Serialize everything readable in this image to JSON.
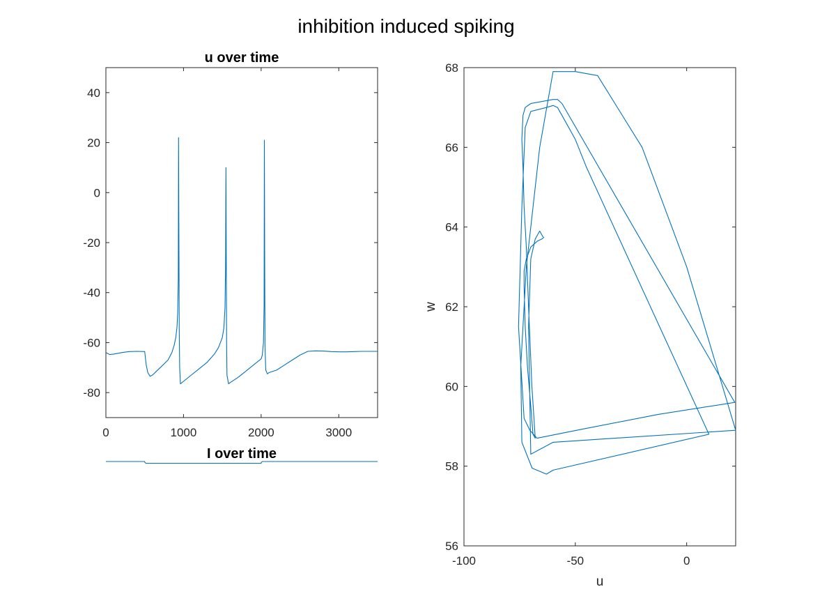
{
  "figure": {
    "title": "inhibition induced spiking"
  },
  "chart_data": [
    {
      "type": "line",
      "title": "u over time",
      "xlabel": "",
      "ylabel": "",
      "xlim": [
        0,
        3500
      ],
      "ylim": [
        -90,
        50
      ],
      "xticks": [
        0,
        1000,
        2000,
        3000
      ],
      "yticks": [
        -80,
        -60,
        -40,
        -20,
        0,
        20,
        40
      ],
      "grid": false,
      "line_color": "#0072BD",
      "series": [
        {
          "x": [
            0,
            50,
            100,
            200,
            300,
            400,
            500,
            505,
            520,
            540,
            570,
            600,
            650,
            700,
            750,
            800,
            850,
            880,
            900,
            915,
            925,
            932,
            936,
            940,
            945,
            950,
            960,
            980,
            1000,
            1100,
            1200,
            1300,
            1400,
            1450,
            1500,
            1520,
            1535,
            1542,
            1546,
            1550,
            1555,
            1560,
            1580,
            1600,
            1700,
            1800,
            1900,
            2000,
            2015,
            2030,
            2038,
            2042,
            2046,
            2050,
            2060,
            2080,
            2100,
            2200,
            2300,
            2400,
            2500,
            2600,
            2700,
            2800,
            2900,
            3000,
            3100,
            3200,
            3300,
            3400,
            3500
          ],
          "y": [
            -64,
            -64.8,
            -64.6,
            -64,
            -63.6,
            -63.5,
            -63.6,
            -65,
            -69,
            -72,
            -73.5,
            -73,
            -71.5,
            -70,
            -68.5,
            -67,
            -64,
            -61,
            -58,
            -54,
            -48,
            -35,
            22,
            -10,
            -55,
            -70,
            -76.5,
            -76,
            -75.5,
            -73,
            -70.5,
            -68,
            -64.5,
            -62,
            -58,
            -54,
            -46,
            -30,
            10,
            -20,
            -60,
            -73,
            -76.5,
            -76,
            -74,
            -71.5,
            -69,
            -66.5,
            -65,
            -60,
            -45,
            21,
            -30,
            -62,
            -71,
            -72.5,
            -72,
            -71,
            -69,
            -67,
            -65,
            -63.5,
            -63.3,
            -63.4,
            -63.6,
            -63.7,
            -63.7,
            -63.6,
            -63.5,
            -63.5,
            -63.5
          ]
        }
      ]
    },
    {
      "type": "line",
      "title": "I over time",
      "xlabel": "",
      "ylabel": "",
      "xlim": [
        0,
        3500
      ],
      "ylim": [
        50,
        90
      ],
      "grid": false,
      "axes_visible": false,
      "line_color": "#0072BD",
      "series": [
        {
          "x": [
            0,
            500,
            500,
            515,
            2000,
            2000,
            2015,
            3500
          ],
          "y": [
            80,
            80,
            78,
            75,
            75,
            77,
            80,
            80
          ]
        }
      ]
    },
    {
      "type": "line",
      "title": "",
      "xlabel": "u",
      "ylabel": "w",
      "xlim": [
        -100,
        22
      ],
      "ylim": [
        56,
        68
      ],
      "xticks": [
        -100,
        -50,
        0
      ],
      "yticks": [
        56,
        58,
        60,
        62,
        64,
        66,
        68
      ],
      "grid": false,
      "line_color": "#0072BD",
      "series": [
        {
          "x": [
            -64,
            -65,
            -67,
            -70,
            -72,
            -73,
            -73,
            -72.5,
            -71.5,
            -70,
            -69,
            -68,
            -69.5,
            -71,
            -72,
            -73,
            -73.5,
            -74,
            -73.5,
            -72.5,
            -70,
            -60,
            -58,
            -56,
            21.6,
            -12.8,
            -49.4,
            -67.2,
            -70.4,
            -73,
            -75.5,
            -74,
            -72.5,
            -70,
            -63,
            -60,
            -58,
            -55,
            -50,
            -45,
            10,
            -60,
            -63,
            -69.4,
            -74,
            -74.5,
            -72,
            -66,
            -60,
            -50,
            -40,
            -20,
            0,
            22,
            -60,
            -70,
            -71,
            -70,
            -68,
            -66,
            -65,
            -64.5
          ],
          "y": [
            63.75,
            63.7,
            63.65,
            63.5,
            63.2,
            62.9,
            62.5,
            61.5,
            60.5,
            59.5,
            58.8,
            58.7,
            60,
            62,
            63.5,
            64.5,
            65.5,
            66.2,
            66.8,
            67.0,
            67.1,
            67.2,
            67.2,
            67.1,
            59.6,
            59.3,
            58.9,
            58.7,
            58.9,
            59.2,
            61.5,
            64.5,
            66.5,
            66.9,
            67.0,
            67.05,
            67.0,
            66.7,
            66.2,
            65.5,
            58.8,
            57.9,
            57.8,
            57.95,
            58.6,
            60.5,
            63,
            66,
            67.9,
            67.9,
            67.8,
            66,
            63,
            58.9,
            58.6,
            58.3,
            61.5,
            63.2,
            63.7,
            63.9,
            63.8,
            63.75
          ]
        }
      ]
    }
  ]
}
